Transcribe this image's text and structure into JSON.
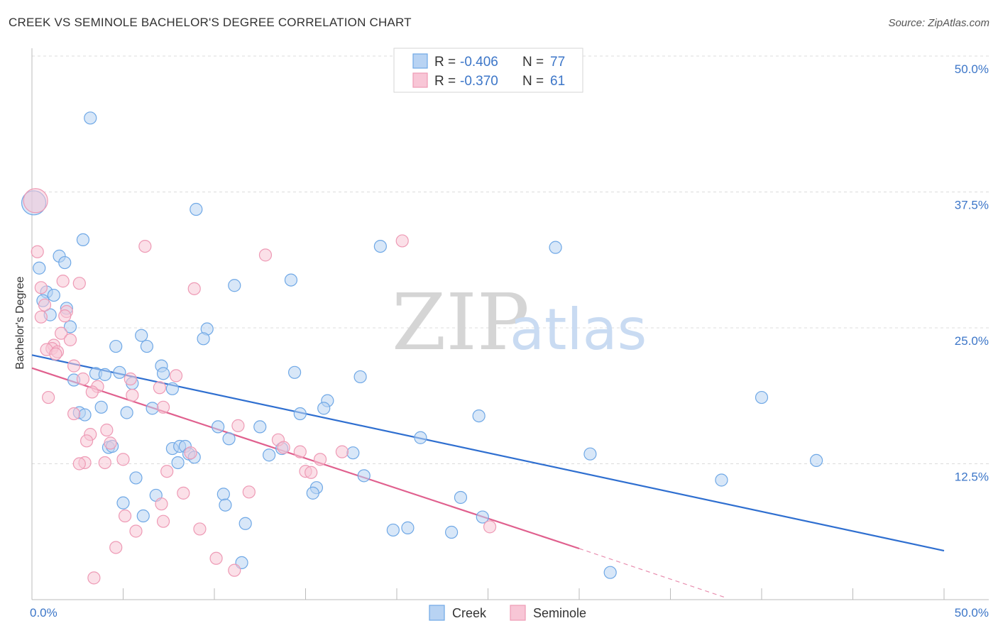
{
  "title": "CREEK VS SEMINOLE BACHELOR'S DEGREE CORRELATION CHART",
  "source": "Source: ZipAtlas.com",
  "watermark": {
    "zip": "ZIP",
    "atlas": "atlas"
  },
  "chart_data": {
    "type": "scatter",
    "ylabel": "Bachelor's Degree",
    "xlim": [
      0,
      50
    ],
    "ylim": [
      0,
      50
    ],
    "x_tick_labels": [
      "0.0%",
      "50.0%"
    ],
    "y_ticks": [
      12.5,
      25.0,
      37.5,
      50.0
    ],
    "y_tick_labels": [
      "12.5%",
      "25.0%",
      "37.5%",
      "50.0%"
    ],
    "grid": true,
    "legend": {
      "position": "top-center",
      "rows": [
        {
          "r_label": "R =",
          "r_value": "-0.406",
          "n_label": "N =",
          "n_value": "77"
        },
        {
          "r_label": "R =",
          "r_value": "-0.370",
          "n_label": "N =",
          "n_value": "61"
        }
      ]
    },
    "series": [
      {
        "name": "Creek",
        "color": "#6fa8e6",
        "fill": "#b8d3f3",
        "line_color": "#2f6fd0",
        "trend": {
          "x0": 0,
          "y0": 22.5,
          "x1": 50,
          "y1": 4.5
        },
        "points": [
          [
            0.1,
            36.5
          ],
          [
            3.2,
            44.3
          ],
          [
            9.0,
            35.9
          ],
          [
            2.8,
            33.1
          ],
          [
            19.1,
            32.5
          ],
          [
            28.7,
            32.4
          ],
          [
            1.5,
            31.6
          ],
          [
            1.8,
            31.0
          ],
          [
            0.4,
            30.5
          ],
          [
            14.2,
            29.4
          ],
          [
            11.1,
            28.9
          ],
          [
            0.8,
            28.3
          ],
          [
            1.2,
            28.0
          ],
          [
            0.6,
            27.5
          ],
          [
            1.9,
            26.8
          ],
          [
            1.0,
            26.2
          ],
          [
            2.1,
            25.1
          ],
          [
            9.6,
            24.9
          ],
          [
            6.0,
            24.3
          ],
          [
            9.4,
            24.0
          ],
          [
            4.6,
            23.3
          ],
          [
            6.3,
            23.3
          ],
          [
            7.1,
            21.5
          ],
          [
            3.5,
            20.8
          ],
          [
            4.8,
            20.9
          ],
          [
            7.2,
            20.8
          ],
          [
            14.4,
            20.9
          ],
          [
            18.0,
            20.5
          ],
          [
            2.3,
            20.2
          ],
          [
            4.0,
            20.7
          ],
          [
            5.5,
            19.9
          ],
          [
            7.7,
            19.4
          ],
          [
            40.0,
            18.6
          ],
          [
            16.2,
            18.3
          ],
          [
            16.0,
            17.6
          ],
          [
            3.8,
            17.7
          ],
          [
            6.6,
            17.6
          ],
          [
            2.6,
            17.2
          ],
          [
            2.9,
            17.0
          ],
          [
            5.2,
            17.2
          ],
          [
            14.7,
            17.1
          ],
          [
            24.5,
            16.9
          ],
          [
            12.5,
            15.9
          ],
          [
            10.2,
            15.9
          ],
          [
            10.8,
            14.8
          ],
          [
            21.3,
            14.9
          ],
          [
            4.2,
            14.0
          ],
          [
            7.7,
            13.9
          ],
          [
            8.1,
            14.1
          ],
          [
            8.4,
            14.1
          ],
          [
            13.7,
            13.9
          ],
          [
            4.4,
            14.1
          ],
          [
            17.6,
            13.5
          ],
          [
            30.6,
            13.4
          ],
          [
            8.6,
            13.4
          ],
          [
            8.9,
            13.1
          ],
          [
            13.0,
            13.3
          ],
          [
            8.0,
            12.6
          ],
          [
            43.0,
            12.8
          ],
          [
            18.2,
            11.4
          ],
          [
            5.7,
            11.2
          ],
          [
            37.8,
            11.0
          ],
          [
            15.6,
            10.3
          ],
          [
            15.4,
            9.8
          ],
          [
            10.5,
            9.7
          ],
          [
            6.8,
            9.6
          ],
          [
            23.5,
            9.4
          ],
          [
            5.0,
            8.9
          ],
          [
            10.6,
            8.7
          ],
          [
            24.7,
            7.6
          ],
          [
            6.1,
            7.7
          ],
          [
            11.7,
            7.0
          ],
          [
            20.6,
            6.6
          ],
          [
            19.8,
            6.4
          ],
          [
            23.0,
            6.2
          ],
          [
            11.5,
            3.4
          ],
          [
            31.7,
            2.5
          ]
        ]
      },
      {
        "name": "Seminole",
        "color": "#ee9ab5",
        "fill": "#f8c6d6",
        "line_color": "#e0608e",
        "trend": {
          "x0": 0,
          "y0": 21.3,
          "x1": 30,
          "y1": 4.7
        },
        "trend_dashed": {
          "x0": 30,
          "y0": 4.7,
          "x1": 38.0,
          "y1": 0.2
        },
        "points": [
          [
            0.2,
            36.7
          ],
          [
            6.2,
            32.5
          ],
          [
            20.3,
            33.0
          ],
          [
            0.3,
            32.0
          ],
          [
            12.8,
            31.7
          ],
          [
            1.7,
            29.3
          ],
          [
            2.6,
            29.1
          ],
          [
            8.9,
            28.6
          ],
          [
            0.5,
            28.7
          ],
          [
            0.7,
            27.1
          ],
          [
            1.9,
            26.5
          ],
          [
            1.8,
            26.1
          ],
          [
            0.5,
            26.0
          ],
          [
            1.6,
            24.5
          ],
          [
            2.1,
            23.9
          ],
          [
            1.2,
            23.4
          ],
          [
            1.1,
            23.1
          ],
          [
            0.8,
            23.0
          ],
          [
            1.4,
            22.8
          ],
          [
            1.3,
            22.6
          ],
          [
            7.9,
            20.6
          ],
          [
            5.4,
            20.3
          ],
          [
            2.8,
            20.3
          ],
          [
            2.3,
            21.5
          ],
          [
            3.6,
            19.6
          ],
          [
            7.0,
            19.5
          ],
          [
            3.3,
            19.1
          ],
          [
            0.9,
            18.6
          ],
          [
            5.5,
            18.8
          ],
          [
            7.2,
            17.7
          ],
          [
            2.3,
            17.1
          ],
          [
            11.3,
            16.0
          ],
          [
            4.1,
            15.6
          ],
          [
            3.2,
            15.2
          ],
          [
            13.5,
            14.7
          ],
          [
            3.0,
            14.6
          ],
          [
            4.3,
            14.4
          ],
          [
            13.8,
            14.0
          ],
          [
            14.7,
            13.6
          ],
          [
            17.0,
            13.6
          ],
          [
            8.7,
            13.5
          ],
          [
            15.8,
            12.9
          ],
          [
            5.0,
            12.9
          ],
          [
            2.9,
            12.6
          ],
          [
            4.0,
            12.6
          ],
          [
            2.6,
            12.5
          ],
          [
            7.4,
            11.8
          ],
          [
            15.0,
            11.8
          ],
          [
            15.3,
            11.7
          ],
          [
            11.9,
            9.9
          ],
          [
            8.3,
            9.8
          ],
          [
            7.1,
            8.8
          ],
          [
            5.1,
            7.7
          ],
          [
            7.2,
            7.2
          ],
          [
            25.1,
            6.7
          ],
          [
            9.2,
            6.5
          ],
          [
            5.7,
            6.3
          ],
          [
            4.6,
            4.8
          ],
          [
            10.1,
            3.8
          ],
          [
            11.1,
            2.7
          ],
          [
            3.4,
            2.0
          ]
        ]
      }
    ]
  }
}
